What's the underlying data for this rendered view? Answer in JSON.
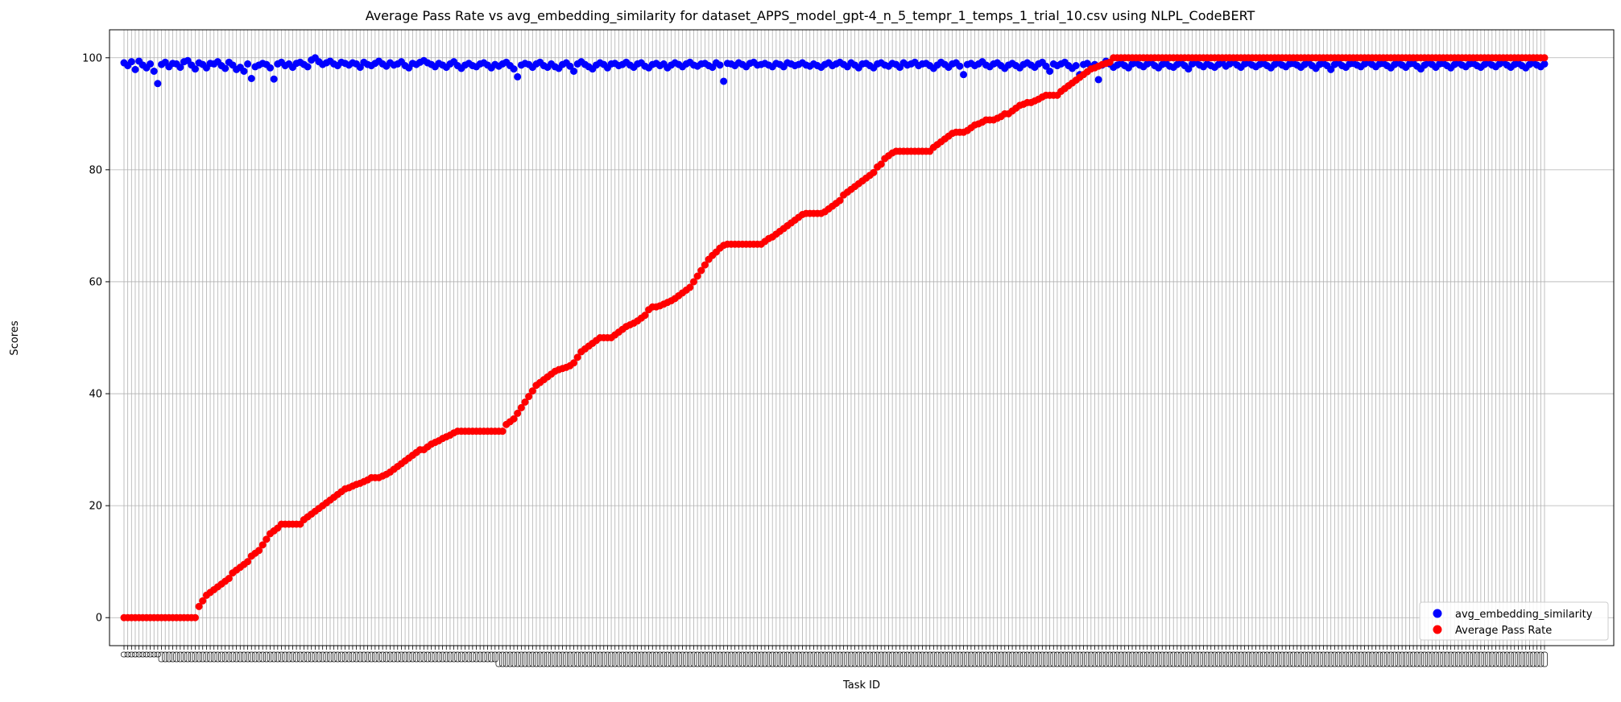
{
  "chart_data": {
    "type": "scatter",
    "title": "Average Pass Rate vs avg_embedding_similarity for dataset_APPS_model_gpt-4_n_5_tempr_1_temps_1_trial_10.csv using NLPL_CodeBERT",
    "xlabel": "Task ID",
    "ylabel": "Scores",
    "ylim": [
      -5,
      105
    ],
    "y_ticks": [
      0,
      20,
      40,
      60,
      80,
      100
    ],
    "grid": true,
    "legend_position": "bottom-right",
    "x_tick_labels_note": "one rotated task-id label per category; labels overlap and are illegible",
    "n_tasks": 380,
    "series": [
      {
        "name": "avg_embedding_similarity",
        "color": "#0000ff",
        "values": [
          99.1,
          98.6,
          99.3,
          97.9,
          99.4,
          98.7,
          98.2,
          98.9,
          97.6,
          95.4,
          98.8,
          99.2,
          98.4,
          99.0,
          98.9,
          98.3,
          99.3,
          99.5,
          98.7,
          98.0,
          99.1,
          98.8,
          98.2,
          99.0,
          98.9,
          99.3,
          98.6,
          98.1,
          99.2,
          98.7,
          97.9,
          98.3,
          97.6,
          98.9,
          96.3,
          98.4,
          98.7,
          99.0,
          98.8,
          98.2,
          96.2,
          98.9,
          99.2,
          98.6,
          98.9,
          98.3,
          99.0,
          99.2,
          98.8,
          98.4,
          99.6,
          100.0,
          99.3,
          98.8,
          99.1,
          99.4,
          98.9,
          98.6,
          99.2,
          99.0,
          98.7,
          99.1,
          98.9,
          98.3,
          99.2,
          98.8,
          98.6,
          99.0,
          99.4,
          98.9,
          98.5,
          99.1,
          98.7,
          98.9,
          99.3,
          98.6,
          98.2,
          99.0,
          98.8,
          99.2,
          99.5,
          99.1,
          98.8,
          98.4,
          99.0,
          98.7,
          98.3,
          98.9,
          99.3,
          98.6,
          98.1,
          98.7,
          99.0,
          98.6,
          98.4,
          98.9,
          99.1,
          98.7,
          98.2,
          98.8,
          98.5,
          98.9,
          99.2,
          98.6,
          98.0,
          96.6,
          98.7,
          99.0,
          98.8,
          98.3,
          98.9,
          99.2,
          98.6,
          98.3,
          98.9,
          98.4,
          98.1,
          98.8,
          99.1,
          98.5,
          97.6,
          98.9,
          99.3,
          98.8,
          98.4,
          98.0,
          98.7,
          99.1,
          98.8,
          98.2,
          98.9,
          99.0,
          98.6,
          98.8,
          99.2,
          98.7,
          98.3,
          98.9,
          99.1,
          98.5,
          98.2,
          98.8,
          99.0,
          98.6,
          98.9,
          98.2,
          98.7,
          99.1,
          98.8,
          98.4,
          98.9,
          99.2,
          98.7,
          98.5,
          98.9,
          99.0,
          98.6,
          98.3,
          99.1,
          98.7,
          95.8,
          99.0,
          98.9,
          98.6,
          99.1,
          98.8,
          98.4,
          99.0,
          99.2,
          98.7,
          98.8,
          99.0,
          98.7,
          98.4,
          99.0,
          98.8,
          98.4,
          99.1,
          98.9,
          98.6,
          98.8,
          99.1,
          98.7,
          98.5,
          98.9,
          98.6,
          98.3,
          98.8,
          99.1,
          98.6,
          98.9,
          99.2,
          98.8,
          98.4,
          99.1,
          98.7,
          98.2,
          98.9,
          99.0,
          98.6,
          98.2,
          98.9,
          99.1,
          98.7,
          98.5,
          99.0,
          98.8,
          98.3,
          99.1,
          98.7,
          98.9,
          99.2,
          98.6,
          98.9,
          99.0,
          98.6,
          98.1,
          98.7,
          99.2,
          98.8,
          98.3,
          98.9,
          99.1,
          98.5,
          97.0,
          98.8,
          99.0,
          98.6,
          98.9,
          99.3,
          98.7,
          98.4,
          98.9,
          99.1,
          98.6,
          98.1,
          98.7,
          99.0,
          98.6,
          98.2,
          98.8,
          99.1,
          98.7,
          98.3,
          98.9,
          99.2,
          98.5,
          97.6,
          98.9,
          98.6,
          98.9,
          99.2,
          98.6,
          98.1,
          98.6,
          97.0,
          98.8,
          99.0,
          98.4,
          98.8,
          96.1,
          98.7,
          99.4,
          98.9,
          98.3,
          98.7,
          99.0,
          98.6,
          98.2,
          98.9,
          99.1,
          98.7,
          98.4,
          98.9,
          99.2,
          98.6,
          98.2,
          98.8,
          99.0,
          98.5,
          98.3,
          98.8,
          99.1,
          98.6,
          98.0,
          98.9,
          99.2,
          98.7,
          98.4,
          98.9,
          98.6,
          98.3,
          98.8,
          99.1,
          98.5,
          98.9,
          99.2,
          98.7,
          98.3,
          98.9,
          99.1,
          98.7,
          98.4,
          98.8,
          99.0,
          98.6,
          98.2,
          98.8,
          99.1,
          98.7,
          98.4,
          98.9,
          99.0,
          98.7,
          98.3,
          98.8,
          99.2,
          98.6,
          98.1,
          98.8,
          99.0,
          98.6,
          97.9,
          98.8,
          99.1,
          98.6,
          98.3,
          98.9,
          99.0,
          98.7,
          98.4,
          98.9,
          99.2,
          98.8,
          98.4,
          98.9,
          99.0,
          98.6,
          98.2,
          98.8,
          99.1,
          98.7,
          98.3,
          98.9,
          99.0,
          98.5,
          98.0,
          98.7,
          99.1,
          98.8,
          98.3,
          98.9,
          99.0,
          98.6,
          98.2,
          98.8,
          99.1,
          98.7,
          98.4,
          98.9,
          99.0,
          98.6,
          98.3,
          98.8,
          99.1,
          98.7,
          98.4,
          98.9,
          99.2,
          98.7,
          98.3,
          98.8,
          99.0,
          98.6,
          98.2,
          98.8,
          99.1,
          98.7,
          98.4,
          98.9
        ]
      },
      {
        "name": "Average Pass Rate",
        "color": "#ff0000",
        "values": [
          0,
          0,
          0,
          0,
          0,
          0,
          0,
          0,
          0,
          0,
          0,
          0,
          0,
          0,
          0,
          0,
          0,
          0,
          0,
          0,
          2.0,
          3.0,
          4.0,
          4.5,
          5.0,
          5.5,
          6.0,
          6.5,
          7.0,
          8.0,
          8.5,
          9.0,
          9.5,
          10.0,
          11.0,
          11.5,
          12.0,
          13.0,
          14.0,
          15.0,
          15.5,
          16.0,
          16.7,
          16.7,
          16.7,
          16.7,
          16.7,
          16.7,
          17.5,
          18.0,
          18.5,
          19.0,
          19.5,
          20.0,
          20.5,
          21.0,
          21.5,
          22.0,
          22.5,
          23.0,
          23.2,
          23.5,
          23.8,
          24.0,
          24.3,
          24.6,
          25.0,
          25.0,
          25.0,
          25.3,
          25.6,
          26.0,
          26.5,
          27.0,
          27.5,
          28.0,
          28.5,
          29.0,
          29.5,
          30.0,
          30.0,
          30.5,
          31.0,
          31.3,
          31.6,
          32.0,
          32.3,
          32.6,
          33.0,
          33.3,
          33.3,
          33.3,
          33.3,
          33.3,
          33.3,
          33.3,
          33.3,
          33.3,
          33.3,
          33.3,
          33.3,
          33.3,
          34.5,
          35.0,
          35.5,
          36.5,
          37.5,
          38.5,
          39.5,
          40.5,
          41.5,
          42.0,
          42.5,
          43.0,
          43.5,
          44.0,
          44.3,
          44.5,
          44.7,
          45.0,
          45.5,
          46.5,
          47.5,
          48.0,
          48.5,
          49.0,
          49.5,
          50.0,
          50.0,
          50.0,
          50.0,
          50.5,
          51.0,
          51.5,
          52.0,
          52.3,
          52.6,
          53.0,
          53.5,
          54.0,
          55.0,
          55.5,
          55.5,
          55.7,
          56.0,
          56.3,
          56.6,
          57.0,
          57.5,
          58.0,
          58.5,
          59.0,
          60.0,
          61.0,
          62.0,
          63.0,
          64.0,
          64.7,
          65.3,
          66.0,
          66.5,
          66.7,
          66.7,
          66.7,
          66.7,
          66.7,
          66.7,
          66.7,
          66.7,
          66.7,
          66.7,
          67.2,
          67.7,
          68.0,
          68.5,
          69.0,
          69.5,
          70.0,
          70.5,
          71.0,
          71.5,
          72.0,
          72.2,
          72.2,
          72.2,
          72.2,
          72.2,
          72.5,
          73.0,
          73.5,
          74.0,
          74.5,
          75.5,
          76.0,
          76.5,
          77.0,
          77.5,
          78.0,
          78.5,
          79.0,
          79.5,
          80.5,
          81.0,
          82.0,
          82.5,
          83.0,
          83.3,
          83.3,
          83.3,
          83.3,
          83.3,
          83.3,
          83.3,
          83.3,
          83.3,
          83.3,
          84.0,
          84.5,
          85.0,
          85.5,
          86.0,
          86.5,
          86.7,
          86.7,
          86.7,
          87.0,
          87.5,
          88.0,
          88.2,
          88.5,
          88.9,
          88.9,
          88.9,
          89.2,
          89.5,
          90.0,
          90.0,
          90.5,
          91.0,
          91.5,
          91.7,
          92.0,
          92.0,
          92.3,
          92.6,
          93.0,
          93.3,
          93.3,
          93.3,
          93.3,
          94.0,
          94.5,
          95.0,
          95.5,
          96.0,
          96.5,
          97.0,
          97.5,
          98.0,
          98.2,
          98.5,
          98.8,
          99.0,
          99.2,
          100,
          100,
          100,
          100,
          100,
          100,
          100,
          100,
          100,
          100,
          100,
          100,
          100,
          100,
          100,
          100,
          100,
          100,
          100,
          100,
          100,
          100,
          100,
          100,
          100,
          100,
          100,
          100,
          100,
          100,
          100,
          100,
          100,
          100,
          100,
          100,
          100,
          100,
          100,
          100,
          100,
          100,
          100,
          100,
          100,
          100,
          100,
          100,
          100,
          100,
          100,
          100,
          100,
          100,
          100,
          100,
          100,
          100,
          100,
          100,
          100,
          100,
          100,
          100,
          100,
          100,
          100,
          100,
          100,
          100,
          100,
          100,
          100,
          100,
          100,
          100,
          100,
          100,
          100,
          100,
          100,
          100,
          100,
          100,
          100,
          100,
          100,
          100,
          100,
          100,
          100,
          100,
          100,
          100,
          100,
          100,
          100,
          100,
          100,
          100,
          100,
          100,
          100,
          100,
          100,
          100,
          100,
          100,
          100,
          100,
          100,
          100,
          100,
          100,
          100,
          100
        ]
      }
    ]
  }
}
